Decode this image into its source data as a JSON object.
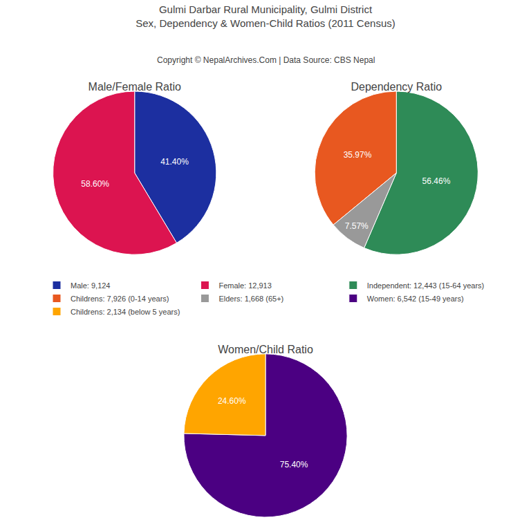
{
  "title": "Gulmi Darbar Rural Municipality, Gulmi District",
  "subtitle": "Sex, Dependency & Women-Child Ratios (2011 Census)",
  "annotations": [
    "Copyright © NepalArchives.Com | Data Source: CBS Nepal"
  ],
  "legend": "center",
  "chart_data": [
    {
      "type": "pie",
      "title": "Male/Female Ratio",
      "categories": [
        "Male: 9,124",
        "Female: 12,913"
      ],
      "values": [
        41.4,
        58.6
      ],
      "value_labels": [
        "41.40%",
        "58.60%"
      ],
      "colors": [
        "#1c2fa0",
        "#dc1450"
      ],
      "data_labels": true
    },
    {
      "type": "pie",
      "title": "Dependency Ratio",
      "categories": [
        "Independent: 12,443 (15-64 years)",
        "Childrens: 7,926 (0-14 years)",
        "Elders: 1,668 (65+)"
      ],
      "values": [
        56.46,
        35.97,
        7.57
      ],
      "value_labels": [
        "56.46%",
        "35.97%",
        "7.57%"
      ],
      "colors": [
        "#2e8b57",
        "#e85820",
        "#999999"
      ],
      "data_labels": true
    },
    {
      "type": "pie",
      "title": "Women/Child Ratio",
      "categories": [
        "Women: 6,542 (15-49 years)",
        "Childrens: 2,134 (below 5 years)"
      ],
      "values": [
        75.4,
        24.6
      ],
      "value_labels": [
        "75.40%",
        "24.60%"
      ],
      "colors": [
        "#4b0082",
        "#ffa500"
      ],
      "data_labels": true
    }
  ]
}
